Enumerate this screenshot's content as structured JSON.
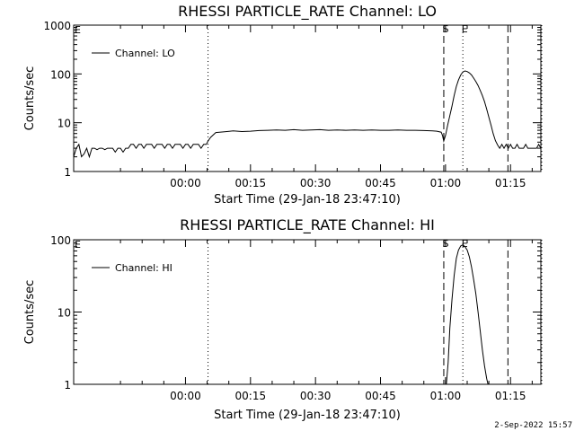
{
  "footer": {
    "timestamp": "2-Sep-2022 15:57"
  },
  "chart_data": [
    {
      "type": "line",
      "title": "RHESSI PARTICLE_RATE Channel: LO",
      "xlabel": "Start Time (29-Jan-18 23:47:10)",
      "ylabel": "Counts/sec",
      "yscale": "log",
      "ylim": [
        1,
        1000
      ],
      "xlim_minutes": [
        -12.8,
        95
      ],
      "x_ticks": [
        {
          "t": 13,
          "label": "00:00"
        },
        {
          "t": 28,
          "label": "00:15"
        },
        {
          "t": 43,
          "label": "00:30"
        },
        {
          "t": 58,
          "label": "00:45"
        },
        {
          "t": 73,
          "label": "01:00"
        },
        {
          "t": 88,
          "label": "01:15"
        }
      ],
      "y_ticks": [
        {
          "v": 1,
          "label": "1"
        },
        {
          "v": 10,
          "label": "10"
        },
        {
          "v": 100,
          "label": "100"
        },
        {
          "v": 1000,
          "label": "1000"
        }
      ],
      "legend": {
        "label": "Channel: LO",
        "placement": "top-left"
      },
      "markers": [
        {
          "t": 18.2,
          "style": "dotted"
        },
        {
          "t": 72.6,
          "style": "dashed",
          "label": "S"
        },
        {
          "t": 77.0,
          "style": "dotted",
          "label": "E"
        },
        {
          "t": 87.4,
          "style": "dashed"
        },
        {
          "t": 95.2,
          "style": "dotted"
        }
      ],
      "left_flag": "E",
      "series": [
        {
          "name": "Channel: LO",
          "x": [
            -12.8,
            -12.2,
            -11.6,
            -11.0,
            -10.4,
            -9.8,
            -9.2,
            -8.6,
            -8.0,
            -7.4,
            -6.8,
            -6.2,
            -5.6,
            -5.0,
            -4.4,
            -3.8,
            -3.2,
            -2.6,
            -2.0,
            -1.4,
            -0.8,
            -0.2,
            0.4,
            1.0,
            1.6,
            2.2,
            2.8,
            3.4,
            4.0,
            4.6,
            5.2,
            5.8,
            6.4,
            7.0,
            7.6,
            8.2,
            8.8,
            9.4,
            10.0,
            10.6,
            11.2,
            11.8,
            12.4,
            13.0,
            13.6,
            14.2,
            14.8,
            15.4,
            16.0,
            16.6,
            17.2,
            17.8,
            18.2,
            18.8,
            20,
            22,
            24,
            26,
            28,
            30,
            32,
            34,
            36,
            38,
            40,
            42,
            44,
            46,
            48,
            50,
            52,
            54,
            56,
            58,
            60,
            62,
            64,
            66,
            68,
            70,
            71,
            72.0,
            72.3,
            72.6,
            73.0,
            73.5,
            74.0,
            74.5,
            75.0,
            75.5,
            76.0,
            76.5,
            77.0,
            77.5,
            78.0,
            78.5,
            79.0,
            79.5,
            80.0,
            80.5,
            81.0,
            81.5,
            82.0,
            82.5,
            83.0,
            83.5,
            84.0,
            84.5,
            85.0,
            85.5,
            86.0,
            86.5,
            87.0,
            87.5,
            88.0,
            88.5,
            89.0,
            89.5,
            90.0,
            90.5,
            91.0,
            91.5,
            92.0,
            92.5,
            93.0,
            93.5,
            94.0,
            94.5,
            95.0
          ],
          "y": [
            2.0,
            3.0,
            3.6,
            2.0,
            2.3,
            3.0,
            2.0,
            3.0,
            3.0,
            2.8,
            3.0,
            3.0,
            2.8,
            3.0,
            3.0,
            3.0,
            2.5,
            3.0,
            3.0,
            2.5,
            3.0,
            3.0,
            3.6,
            3.6,
            3.0,
            3.6,
            3.6,
            3.0,
            3.6,
            3.6,
            3.6,
            3.0,
            3.6,
            3.6,
            3.6,
            3.0,
            3.6,
            3.6,
            3.0,
            3.6,
            3.6,
            3.6,
            3.0,
            3.6,
            3.6,
            3.0,
            3.6,
            3.6,
            3.6,
            3.0,
            3.6,
            3.6,
            4.2,
            5.0,
            6.3,
            6.5,
            6.8,
            6.6,
            6.7,
            6.9,
            7.0,
            7.1,
            7.0,
            7.2,
            7.0,
            7.1,
            7.2,
            7.0,
            7.1,
            7.0,
            7.1,
            7.0,
            7.1,
            7.0,
            7.0,
            7.1,
            7.0,
            7.0,
            6.9,
            6.8,
            6.7,
            6.4,
            5.5,
            4.2,
            5.5,
            9,
            14,
            22,
            36,
            55,
            75,
            95,
            110,
            115,
            112,
            105,
            95,
            82,
            70,
            58,
            46,
            36,
            27,
            19,
            13,
            9,
            6,
            4.3,
            3.5,
            3.0,
            3.6,
            3.0,
            3.6,
            3.0,
            3.6,
            3.0,
            3.0,
            3.6,
            3.0,
            3.0,
            3.0,
            3.6,
            3.0,
            3.0,
            3.0,
            3.0,
            3.0,
            3.6,
            3.0
          ]
        }
      ]
    },
    {
      "type": "line",
      "title": "RHESSI PARTICLE_RATE Channel: HI",
      "xlabel": "Start Time (29-Jan-18 23:47:10)",
      "ylabel": "Counts/sec",
      "yscale": "log",
      "ylim": [
        1,
        100
      ],
      "xlim_minutes": [
        -12.8,
        95
      ],
      "x_ticks": [
        {
          "t": 13,
          "label": "00:00"
        },
        {
          "t": 28,
          "label": "00:15"
        },
        {
          "t": 43,
          "label": "00:30"
        },
        {
          "t": 58,
          "label": "00:45"
        },
        {
          "t": 73,
          "label": "01:00"
        },
        {
          "t": 88,
          "label": "01:15"
        }
      ],
      "y_ticks": [
        {
          "v": 1,
          "label": "1"
        },
        {
          "v": 10,
          "label": "10"
        },
        {
          "v": 100,
          "label": "100"
        }
      ],
      "legend": {
        "label": "Channel: HI",
        "placement": "top-left"
      },
      "markers": [
        {
          "t": 18.2,
          "style": "dotted"
        },
        {
          "t": 72.6,
          "style": "dashed",
          "label": "S"
        },
        {
          "t": 77.0,
          "style": "dotted",
          "label": "E"
        },
        {
          "t": 87.4,
          "style": "dashed"
        },
        {
          "t": 95.2,
          "style": "dotted"
        }
      ],
      "left_flag": "E",
      "series": [
        {
          "name": "Channel: HI",
          "x": [
            73.2,
            73.6,
            74.0,
            74.5,
            75.0,
            75.5,
            76.0,
            76.5,
            77.0,
            77.5,
            78.0,
            78.5,
            79.0,
            79.5,
            80.0,
            80.5,
            81.0,
            81.5,
            82.0,
            82.5,
            82.8
          ],
          "y": [
            1.0,
            2.0,
            6,
            15,
            32,
            55,
            72,
            82,
            85,
            80,
            72,
            58,
            42,
            28,
            18,
            10,
            5.5,
            3.0,
            1.8,
            1.2,
            1.0
          ]
        }
      ]
    }
  ]
}
